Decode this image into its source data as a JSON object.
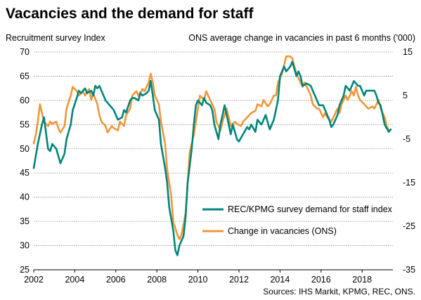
{
  "chart_data": {
    "type": "line",
    "title": "Vacancies and the demand for staff",
    "left_axis_label": "Recruitment survey Index",
    "right_axis_label": "ONS average change in vacancies in past 6 months ('000)",
    "source": "Sources: IHS Markit, KPMG, REC, ONS.",
    "x_ticks": [
      "2002",
      "2004",
      "2006",
      "2008",
      "2010",
      "2012",
      "2014",
      "2016",
      "2018"
    ],
    "xlim": [
      2002,
      2019.5
    ],
    "left_ticks": [
      "70",
      "65",
      "60",
      "55",
      "50",
      "45",
      "40",
      "35",
      "30",
      "25"
    ],
    "ylim_left": [
      25,
      70
    ],
    "right_ticks": [
      "15",
      "5",
      "-5",
      "-15",
      "-25",
      "-35"
    ],
    "ylim_right": [
      -35,
      15
    ],
    "grid": true,
    "legend_position": "center-right",
    "series": [
      {
        "name": "REC/KPMG survey demand for staff index",
        "axis": "left",
        "color": "#00857a",
        "points": [
          [
            2002.0,
            46
          ],
          [
            2002.2,
            51
          ],
          [
            2002.4,
            55
          ],
          [
            2002.5,
            56.5
          ],
          [
            2002.7,
            50
          ],
          [
            2002.8,
            49.5
          ],
          [
            2002.9,
            51
          ],
          [
            2003.1,
            50
          ],
          [
            2003.2,
            48.5
          ],
          [
            2003.3,
            47
          ],
          [
            2003.5,
            49
          ],
          [
            2003.6,
            52
          ],
          [
            2003.8,
            55
          ],
          [
            2003.9,
            58
          ],
          [
            2004.1,
            60.5
          ],
          [
            2004.2,
            62
          ],
          [
            2004.3,
            61.5
          ],
          [
            2004.5,
            62.5
          ],
          [
            2004.6,
            61.5
          ],
          [
            2004.8,
            62
          ],
          [
            2004.9,
            61
          ],
          [
            2005.0,
            63
          ],
          [
            2005.1,
            62.5
          ],
          [
            2005.2,
            63
          ],
          [
            2005.4,
            61
          ],
          [
            2005.5,
            60
          ],
          [
            2005.7,
            59
          ],
          [
            2005.9,
            58
          ],
          [
            2006.0,
            57
          ],
          [
            2006.1,
            56
          ],
          [
            2006.3,
            56.5
          ],
          [
            2006.4,
            58
          ],
          [
            2006.5,
            57.5
          ],
          [
            2006.7,
            60
          ],
          [
            2006.8,
            60.5
          ],
          [
            2006.9,
            60.5
          ],
          [
            2007.1,
            60
          ],
          [
            2007.2,
            61.5
          ],
          [
            2007.3,
            61
          ],
          [
            2007.5,
            61.5
          ],
          [
            2007.6,
            62
          ],
          [
            2007.7,
            64
          ],
          [
            2007.8,
            61
          ],
          [
            2007.9,
            58
          ],
          [
            2008.1,
            56
          ],
          [
            2008.2,
            51
          ],
          [
            2008.4,
            46
          ],
          [
            2008.5,
            43
          ],
          [
            2008.6,
            38
          ],
          [
            2008.8,
            33
          ],
          [
            2008.9,
            29
          ],
          [
            2009.0,
            28
          ],
          [
            2009.1,
            30
          ],
          [
            2009.3,
            32
          ],
          [
            2009.4,
            36
          ],
          [
            2009.5,
            43
          ],
          [
            2009.7,
            50
          ],
          [
            2009.8,
            55
          ],
          [
            2009.9,
            59
          ],
          [
            2010.0,
            60
          ],
          [
            2010.2,
            59
          ],
          [
            2010.3,
            60.5
          ],
          [
            2010.4,
            59.5
          ],
          [
            2010.6,
            59
          ],
          [
            2010.7,
            58
          ],
          [
            2010.8,
            55
          ],
          [
            2011.0,
            52
          ],
          [
            2011.1,
            55
          ],
          [
            2011.3,
            59
          ],
          [
            2011.4,
            57
          ],
          [
            2011.6,
            53
          ],
          [
            2011.7,
            55
          ],
          [
            2011.9,
            52
          ],
          [
            2012.0,
            51.5
          ],
          [
            2012.2,
            53
          ],
          [
            2012.4,
            54.5
          ],
          [
            2012.5,
            54
          ],
          [
            2012.6,
            55
          ],
          [
            2012.8,
            53.5
          ],
          [
            2012.9,
            56
          ],
          [
            2013.1,
            55
          ],
          [
            2013.3,
            57
          ],
          [
            2013.5,
            54
          ],
          [
            2013.7,
            56
          ],
          [
            2013.9,
            60
          ],
          [
            2014.0,
            65
          ],
          [
            2014.2,
            67
          ],
          [
            2014.3,
            66
          ],
          [
            2014.5,
            67
          ],
          [
            2014.6,
            68
          ],
          [
            2014.8,
            65
          ],
          [
            2014.9,
            66
          ],
          [
            2015.0,
            65
          ],
          [
            2015.1,
            63
          ],
          [
            2015.3,
            63.5
          ],
          [
            2015.5,
            63
          ],
          [
            2015.6,
            62
          ],
          [
            2015.8,
            60
          ],
          [
            2015.9,
            59
          ],
          [
            2016.1,
            59
          ],
          [
            2016.3,
            57
          ],
          [
            2016.4,
            56
          ],
          [
            2016.5,
            54.5
          ],
          [
            2016.6,
            55
          ],
          [
            2016.8,
            57
          ],
          [
            2016.9,
            59
          ],
          [
            2017.1,
            61
          ],
          [
            2017.2,
            63
          ],
          [
            2017.4,
            62
          ],
          [
            2017.5,
            63
          ],
          [
            2017.6,
            64
          ],
          [
            2017.8,
            63
          ],
          [
            2017.9,
            63
          ],
          [
            2018.1,
            61
          ],
          [
            2018.2,
            62
          ],
          [
            2018.4,
            62
          ],
          [
            2018.6,
            62
          ],
          [
            2018.7,
            61
          ],
          [
            2018.8,
            59.5
          ],
          [
            2018.9,
            59
          ],
          [
            2019.0,
            57
          ],
          [
            2019.1,
            55
          ],
          [
            2019.3,
            53.5
          ],
          [
            2019.4,
            54
          ]
        ]
      },
      {
        "name": "Change in vacancies (ONS)",
        "axis": "right",
        "color": "#f0963a",
        "points": [
          [
            2002.0,
            -6
          ],
          [
            2002.1,
            -4
          ],
          [
            2002.2,
            -1
          ],
          [
            2002.3,
            3
          ],
          [
            2002.4,
            1
          ],
          [
            2002.5,
            -1
          ],
          [
            2002.7,
            -2
          ],
          [
            2002.8,
            -1
          ],
          [
            2002.9,
            -1.5
          ],
          [
            2003.1,
            -1
          ],
          [
            2003.2,
            -2.5
          ],
          [
            2003.3,
            -3.5
          ],
          [
            2003.5,
            -2
          ],
          [
            2003.6,
            2
          ],
          [
            2003.8,
            5
          ],
          [
            2003.9,
            7
          ],
          [
            2004.1,
            6
          ],
          [
            2004.2,
            5
          ],
          [
            2004.4,
            6
          ],
          [
            2004.5,
            5
          ],
          [
            2004.7,
            6.5
          ],
          [
            2004.8,
            4
          ],
          [
            2004.9,
            5.5
          ],
          [
            2005.1,
            3
          ],
          [
            2005.2,
            0.5
          ],
          [
            2005.3,
            -1
          ],
          [
            2005.5,
            -2
          ],
          [
            2005.6,
            -3.5
          ],
          [
            2005.8,
            -2
          ],
          [
            2005.9,
            -2.5
          ],
          [
            2006.1,
            -3
          ],
          [
            2006.2,
            -1
          ],
          [
            2006.4,
            -2
          ],
          [
            2006.5,
            0.5
          ],
          [
            2006.7,
            2
          ],
          [
            2006.8,
            5
          ],
          [
            2006.9,
            5.5
          ],
          [
            2007.0,
            6
          ],
          [
            2007.1,
            5
          ],
          [
            2007.3,
            6.5
          ],
          [
            2007.4,
            6
          ],
          [
            2007.6,
            8
          ],
          [
            2007.7,
            10
          ],
          [
            2007.8,
            8
          ],
          [
            2007.9,
            5
          ],
          [
            2008.1,
            3
          ],
          [
            2008.2,
            -1
          ],
          [
            2008.4,
            -6
          ],
          [
            2008.5,
            -12
          ],
          [
            2008.7,
            -18
          ],
          [
            2008.8,
            -24
          ],
          [
            2009.0,
            -27
          ],
          [
            2009.1,
            -28
          ],
          [
            2009.2,
            -27
          ],
          [
            2009.4,
            -22
          ],
          [
            2009.5,
            -15
          ],
          [
            2009.6,
            -8
          ],
          [
            2009.8,
            -4
          ],
          [
            2009.9,
            -1
          ],
          [
            2010.0,
            2
          ],
          [
            2010.1,
            5
          ],
          [
            2010.3,
            4
          ],
          [
            2010.4,
            6
          ],
          [
            2010.5,
            5
          ],
          [
            2010.7,
            3
          ],
          [
            2010.8,
            2
          ],
          [
            2010.9,
            -1
          ],
          [
            2011.1,
            -3
          ],
          [
            2011.2,
            -1
          ],
          [
            2011.4,
            2
          ],
          [
            2011.5,
            0
          ],
          [
            2011.6,
            -2
          ],
          [
            2011.8,
            -1
          ],
          [
            2011.9,
            -1.5
          ],
          [
            2012.1,
            -2
          ],
          [
            2012.2,
            -1
          ],
          [
            2012.4,
            0
          ],
          [
            2012.6,
            1
          ],
          [
            2012.8,
            1.5
          ],
          [
            2012.9,
            3
          ],
          [
            2013.1,
            2.5
          ],
          [
            2013.2,
            4
          ],
          [
            2013.4,
            2.5
          ],
          [
            2013.5,
            3
          ],
          [
            2013.7,
            5
          ],
          [
            2013.8,
            5
          ],
          [
            2013.9,
            8
          ],
          [
            2014.1,
            10
          ],
          [
            2014.2,
            12
          ],
          [
            2014.3,
            14
          ],
          [
            2014.5,
            14
          ],
          [
            2014.6,
            13.5
          ],
          [
            2014.8,
            10
          ],
          [
            2014.9,
            9
          ],
          [
            2015.1,
            7
          ],
          [
            2015.2,
            8
          ],
          [
            2015.3,
            7
          ],
          [
            2015.5,
            5
          ],
          [
            2015.6,
            3
          ],
          [
            2015.8,
            2
          ],
          [
            2015.9,
            2
          ],
          [
            2016.1,
            0
          ],
          [
            2016.2,
            1
          ],
          [
            2016.3,
            0
          ],
          [
            2016.5,
            -1
          ],
          [
            2016.6,
            0
          ],
          [
            2016.8,
            2
          ],
          [
            2016.9,
            1
          ],
          [
            2017.0,
            3
          ],
          [
            2017.2,
            5
          ],
          [
            2017.3,
            4
          ],
          [
            2017.5,
            6
          ],
          [
            2017.6,
            5
          ],
          [
            2017.7,
            7
          ],
          [
            2017.8,
            5
          ],
          [
            2017.9,
            4
          ],
          [
            2018.1,
            3
          ],
          [
            2018.3,
            2
          ],
          [
            2018.5,
            2.5
          ],
          [
            2018.6,
            2
          ],
          [
            2018.7,
            3
          ],
          [
            2018.8,
            4
          ],
          [
            2018.9,
            2
          ],
          [
            2019.0,
            1
          ],
          [
            2019.1,
            0
          ],
          [
            2019.2,
            -2
          ],
          [
            2019.3,
            -3
          ]
        ]
      }
    ]
  }
}
